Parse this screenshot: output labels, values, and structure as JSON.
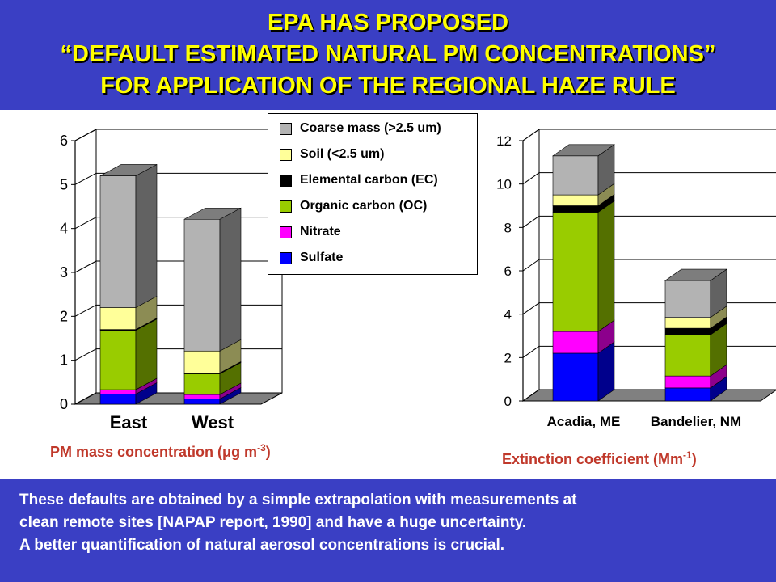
{
  "slide": {
    "title_lines": [
      "EPA HAS PROPOSED",
      "“DEFAULT ESTIMATED NATURAL PM CONCENTRATIONS”",
      "FOR APPLICATION OF THE REGIONAL HAZE RULE"
    ],
    "notes": [
      "These defaults are obtained by a simple extrapolation with measurements at",
      "clean remote sites [NAPAP report, 1990] and have a huge uncertainty.",
      "A better quantification of natural aerosol concentrations is crucial."
    ],
    "left_caption": {
      "prefix": "PM mass concentration (",
      "mu": "μ",
      "unit": "g m",
      "sup": "-3",
      "suffix": ")"
    },
    "right_caption": {
      "prefix": "Extinction coefficient (Mm",
      "sup": "-1",
      "suffix": ")"
    },
    "colors": {
      "title_band": "#3a3fc4",
      "title_text": "#ffff00",
      "caption_text": "#c0392b"
    }
  },
  "legend": [
    {
      "label": "Coarse mass (>2.5 um)",
      "color": "#b3b3b3"
    },
    {
      "label": "Soil (<2.5 um)",
      "color": "#ffff99"
    },
    {
      "label": "Elemental carbon (EC)",
      "color": "#000000"
    },
    {
      "label": "Organic carbon (OC)",
      "color": "#99cc00"
    },
    {
      "label": "Nitrate",
      "color": "#ff00ff"
    },
    {
      "label": "Sulfate",
      "color": "#0000ff"
    }
  ],
  "chart_data": [
    {
      "type": "bar",
      "stacked": true,
      "categories": [
        "East",
        "West"
      ],
      "ylim": [
        0,
        6
      ],
      "yticks": [
        "0",
        "1",
        "2",
        "3",
        "4",
        "5",
        "6"
      ],
      "series": [
        {
          "name": "Sulfate",
          "values": [
            0.23,
            0.12
          ],
          "color": "#0000ff"
        },
        {
          "name": "Nitrate",
          "values": [
            0.1,
            0.1
          ],
          "color": "#ff00ff"
        },
        {
          "name": "Organic carbon (OC)",
          "values": [
            1.35,
            0.47
          ],
          "color": "#99cc00"
        },
        {
          "name": "Elemental carbon (EC)",
          "values": [
            0.02,
            0.02
          ],
          "color": "#000000"
        },
        {
          "name": "Soil (<2.5 um)",
          "values": [
            0.5,
            0.5
          ],
          "color": "#ffff99"
        },
        {
          "name": "Coarse mass (>2.5 um)",
          "values": [
            3.0,
            3.0
          ],
          "color": "#b3b3b3"
        }
      ]
    },
    {
      "type": "bar",
      "stacked": true,
      "categories": [
        "Acadia, ME",
        "Bandelier, NM"
      ],
      "ylim": [
        0,
        12
      ],
      "yticks": [
        "0",
        "2",
        "4",
        "6",
        "8",
        "10",
        "12"
      ],
      "series": [
        {
          "name": "Sulfate",
          "values": [
            2.2,
            0.6
          ],
          "color": "#0000ff"
        },
        {
          "name": "Nitrate",
          "values": [
            1.0,
            0.55
          ],
          "color": "#ff00ff"
        },
        {
          "name": "Organic carbon (OC)",
          "values": [
            5.5,
            1.9
          ],
          "color": "#99cc00"
        },
        {
          "name": "Elemental carbon (EC)",
          "values": [
            0.3,
            0.3
          ],
          "color": "#000000"
        },
        {
          "name": "Soil (<2.5 um)",
          "values": [
            0.5,
            0.5
          ],
          "color": "#ffff99"
        },
        {
          "name": "Coarse mass (>2.5 um)",
          "values": [
            1.8,
            1.7
          ],
          "color": "#b3b3b3"
        }
      ]
    }
  ]
}
